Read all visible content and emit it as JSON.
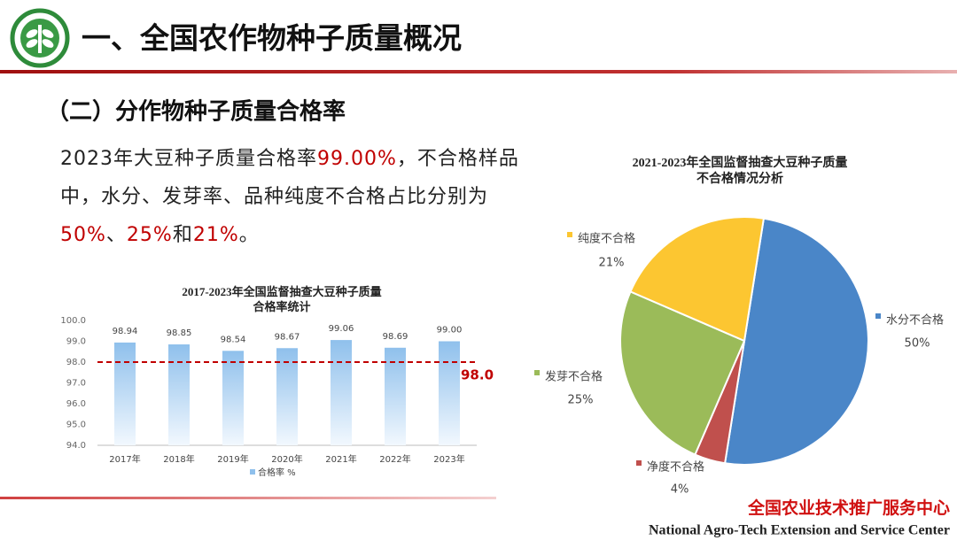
{
  "header": {
    "title": "一、全国农作物种子质量概况"
  },
  "subtitle": "（二）分作物种子质量合格率",
  "paragraph": [
    {
      "text": "2023年大豆种子质量合格率",
      "color": "#222222"
    },
    {
      "text": "99.00%",
      "color": "#c00000"
    },
    {
      "text": "，不合格样品中，水分、发芽率、品种纯度不合格占比分别为",
      "color": "#222222"
    },
    {
      "text": "50%",
      "color": "#c00000"
    },
    {
      "text": "、",
      "color": "#222222"
    },
    {
      "text": "25%",
      "color": "#c00000"
    },
    {
      "text": "和",
      "color": "#222222"
    },
    {
      "text": "21%",
      "color": "#c00000"
    },
    {
      "text": "。",
      "color": "#222222"
    }
  ],
  "chart_data": [
    {
      "type": "bar",
      "title": [
        "2017-2023年全国监督抽查大豆种子质量",
        "合格率统计"
      ],
      "categories": [
        "2017年",
        "2018年",
        "2019年",
        "2020年",
        "2021年",
        "2022年",
        "2023年"
      ],
      "series": [
        {
          "name": "合格率 %",
          "color": "#8fc0ec",
          "values": [
            98.94,
            98.85,
            98.54,
            98.67,
            99.06,
            98.69,
            99.0
          ],
          "value_labels": [
            "98.94",
            "98.85",
            "98.54",
            "98.67",
            "99.06",
            "98.69",
            "99.00"
          ]
        }
      ],
      "ylim": [
        94,
        100
      ],
      "yticks": [
        {
          "value": 94,
          "label": "94.0"
        },
        {
          "value": 95,
          "label": "95.0"
        },
        {
          "value": 96,
          "label": "96.0"
        },
        {
          "value": 97,
          "label": "97.0"
        },
        {
          "value": 98,
          "label": "98.0"
        },
        {
          "value": 99,
          "label": "99.0"
        },
        {
          "value": 100,
          "label": "100.0"
        }
      ],
      "reference_line": {
        "value": 98.0,
        "label": "98.0",
        "color": "#c00000"
      },
      "legend": "bottom"
    },
    {
      "type": "pie",
      "title": [
        "2021-2023年全国监督抽查大豆种子质量",
        "不合格情况分析"
      ],
      "categories": [
        "水分不合格",
        "净度不合格",
        "发芽不合格",
        "纯度不合格"
      ],
      "values": [
        50,
        4,
        25,
        21
      ],
      "value_labels": [
        "50%",
        "4%",
        "25%",
        "21%"
      ],
      "colors": [
        "#4a86c8",
        "#c0504d",
        "#9bbb59",
        "#fcc631"
      ]
    }
  ],
  "footer": {
    "org_cn": "全国农业技术推广服务中心",
    "org_en": "National Agro-Tech Extension and Service Center"
  }
}
